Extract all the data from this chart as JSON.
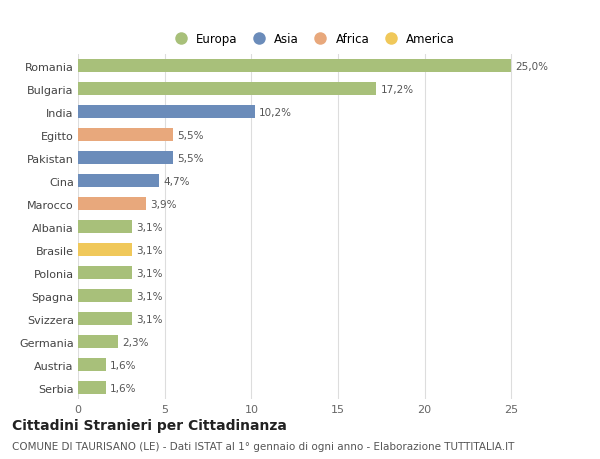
{
  "categories": [
    "Romania",
    "Bulgaria",
    "India",
    "Egitto",
    "Pakistan",
    "Cina",
    "Marocco",
    "Albania",
    "Brasile",
    "Polonia",
    "Spagna",
    "Svizzera",
    "Germania",
    "Austria",
    "Serbia"
  ],
  "values": [
    25.0,
    17.2,
    10.2,
    5.5,
    5.5,
    4.7,
    3.9,
    3.1,
    3.1,
    3.1,
    3.1,
    3.1,
    2.3,
    1.6,
    1.6
  ],
  "labels": [
    "25,0%",
    "17,2%",
    "10,2%",
    "5,5%",
    "5,5%",
    "4,7%",
    "3,9%",
    "3,1%",
    "3,1%",
    "3,1%",
    "3,1%",
    "3,1%",
    "2,3%",
    "1,6%",
    "1,6%"
  ],
  "continents": [
    "Europa",
    "Europa",
    "Asia",
    "Africa",
    "Asia",
    "Asia",
    "Africa",
    "Europa",
    "America",
    "Europa",
    "Europa",
    "Europa",
    "Europa",
    "Europa",
    "Europa"
  ],
  "continent_colors": {
    "Europa": "#a8c07a",
    "Asia": "#6b8cba",
    "Africa": "#e8a87c",
    "America": "#f0c85a"
  },
  "legend_order": [
    "Europa",
    "Asia",
    "Africa",
    "America"
  ],
  "title": "Cittadini Stranieri per Cittadinanza",
  "subtitle": "COMUNE DI TAURISANO (LE) - Dati ISTAT al 1° gennaio di ogni anno - Elaborazione TUTTITALIA.IT",
  "xlim": [
    0,
    27
  ],
  "xticks": [
    0,
    5,
    10,
    15,
    20,
    25
  ],
  "background_color": "#ffffff",
  "grid_color": "#dddddd",
  "bar_height": 0.55,
  "title_fontsize": 10,
  "subtitle_fontsize": 7.5,
  "label_fontsize": 7.5,
  "tick_fontsize": 8,
  "legend_fontsize": 8.5
}
